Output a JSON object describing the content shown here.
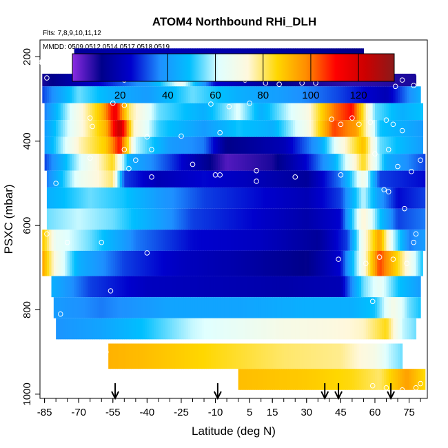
{
  "chart_data": {
    "type": "heatmap",
    "title": "ATOM4 Northbound RHi_DLH",
    "subtitle_flights": "Flts: 7,8,9,10,11,12",
    "subtitle_dates": "MMDD: 0509,0512,0514,0517,0518,0519",
    "xlabel": "Latitude (deg N)",
    "ylabel": "PSXC (mbar)",
    "xlim": [
      -87,
      83
    ],
    "ylim": [
      1010,
      160
    ],
    "x_ticks": [
      -85,
      -70,
      -55,
      -40,
      -25,
      -10,
      5,
      15,
      30,
      45,
      60,
      75
    ],
    "y_ticks": [
      200,
      400,
      600,
      800,
      1000
    ],
    "colorbar": {
      "ticks": [
        20,
        40,
        60,
        80,
        100,
        120
      ],
      "range": [
        0,
        135
      ],
      "colors": [
        "#8b2be2",
        "#00008b",
        "#0000cd",
        "#1e90ff",
        "#00bfff",
        "#e0ffff",
        "#fff8dc",
        "#ffd700",
        "#ff8c00",
        "#ff0000",
        "#cd0000",
        "#8b1a1a"
      ],
      "divisions": [
        40,
        60,
        80,
        100,
        120
      ]
    },
    "arrow_latitudes": [
      -54,
      -9,
      38,
      44,
      67
    ],
    "bands": [
      {
        "p_top": 180,
        "p_bot": 240,
        "x0": -72,
        "x1": 55,
        "stops": [
          [
            -72,
            15
          ],
          [
            -40,
            20
          ],
          [
            0,
            18
          ],
          [
            55,
            12
          ]
        ]
      },
      {
        "p_top": 240,
        "p_bot": 270,
        "x0": -86,
        "x1": 78,
        "stops": [
          [
            -86,
            10
          ],
          [
            -60,
            25
          ],
          [
            -40,
            40
          ],
          [
            -25,
            65
          ],
          [
            -10,
            25
          ],
          [
            20,
            12
          ],
          [
            50,
            8
          ],
          [
            78,
            10
          ]
        ]
      },
      {
        "p_top": 270,
        "p_bot": 310,
        "x0": -86,
        "x1": 80,
        "stops": [
          [
            -86,
            30
          ],
          [
            -70,
            55
          ],
          [
            -55,
            45
          ],
          [
            -40,
            40
          ],
          [
            -20,
            55
          ],
          [
            0,
            45
          ],
          [
            20,
            40
          ],
          [
            45,
            30
          ],
          [
            65,
            20
          ],
          [
            80,
            45
          ]
        ]
      },
      {
        "p_top": 310,
        "p_bot": 350,
        "x0": -85,
        "x1": 81,
        "stops": [
          [
            -85,
            35
          ],
          [
            -70,
            70
          ],
          [
            -60,
            90
          ],
          [
            -54,
            115
          ],
          [
            -48,
            80
          ],
          [
            -35,
            55
          ],
          [
            -15,
            45
          ],
          [
            0,
            62
          ],
          [
            10,
            45
          ],
          [
            30,
            70
          ],
          [
            42,
            100
          ],
          [
            50,
            110
          ],
          [
            60,
            55
          ],
          [
            72,
            45
          ],
          [
            81,
            50
          ]
        ]
      },
      {
        "p_top": 350,
        "p_bot": 390,
        "x0": -85,
        "x1": 81,
        "stops": [
          [
            -85,
            40
          ],
          [
            -70,
            70
          ],
          [
            -58,
            92
          ],
          [
            -52,
            125
          ],
          [
            -46,
            75
          ],
          [
            -35,
            52
          ],
          [
            -15,
            40
          ],
          [
            0,
            50
          ],
          [
            15,
            45
          ],
          [
            30,
            68
          ],
          [
            42,
            105
          ],
          [
            52,
            95
          ],
          [
            62,
            50
          ],
          [
            81,
            40
          ]
        ]
      },
      {
        "p_top": 390,
        "p_bot": 430,
        "x0": -85,
        "x1": 81,
        "stops": [
          [
            -85,
            40
          ],
          [
            -70,
            75
          ],
          [
            -58,
            88
          ],
          [
            -52,
            110
          ],
          [
            -45,
            60
          ],
          [
            -30,
            40
          ],
          [
            -15,
            35
          ],
          [
            -5,
            12
          ],
          [
            20,
            20
          ],
          [
            35,
            40
          ],
          [
            45,
            70
          ],
          [
            55,
            90
          ],
          [
            62,
            55
          ],
          [
            81,
            40
          ]
        ]
      },
      {
        "p_top": 430,
        "p_bot": 470,
        "x0": -85,
        "x1": 82,
        "stops": [
          [
            -85,
            30
          ],
          [
            -70,
            60
          ],
          [
            -55,
            85
          ],
          [
            -48,
            45
          ],
          [
            -30,
            30
          ],
          [
            -5,
            5
          ],
          [
            15,
            10
          ],
          [
            30,
            25
          ],
          [
            42,
            45
          ],
          [
            55,
            85
          ],
          [
            65,
            45
          ],
          [
            82,
            30
          ]
        ]
      },
      {
        "p_top": 470,
        "p_bot": 510,
        "x0": -84,
        "x1": 82,
        "stops": [
          [
            -84,
            35
          ],
          [
            -70,
            65
          ],
          [
            -55,
            80
          ],
          [
            -50,
            30
          ],
          [
            -35,
            20
          ],
          [
            -15,
            25
          ],
          [
            10,
            20
          ],
          [
            30,
            15
          ],
          [
            45,
            35
          ],
          [
            55,
            70
          ],
          [
            62,
            30
          ],
          [
            82,
            25
          ]
        ]
      },
      {
        "p_top": 510,
        "p_bot": 560,
        "x0": -84,
        "x1": 82,
        "stops": [
          [
            -84,
            45
          ],
          [
            -65,
            55
          ],
          [
            -50,
            50
          ],
          [
            -35,
            40
          ],
          [
            -15,
            30
          ],
          [
            10,
            25
          ],
          [
            30,
            20
          ],
          [
            45,
            30
          ],
          [
            55,
            60
          ],
          [
            62,
            40
          ],
          [
            70,
            25
          ],
          [
            82,
            30
          ]
        ]
      },
      {
        "p_top": 560,
        "p_bot": 610,
        "x0": -84,
        "x1": 82,
        "stops": [
          [
            -84,
            55
          ],
          [
            -70,
            60
          ],
          [
            -55,
            55
          ],
          [
            -40,
            45
          ],
          [
            -20,
            30
          ],
          [
            5,
            25
          ],
          [
            30,
            18
          ],
          [
            45,
            25
          ],
          [
            55,
            75
          ],
          [
            62,
            50
          ],
          [
            70,
            30
          ],
          [
            82,
            35
          ]
        ]
      },
      {
        "p_top": 610,
        "p_bot": 660,
        "x0": -86,
        "x1": 82,
        "stops": [
          [
            -86,
            90
          ],
          [
            -80,
            65
          ],
          [
            -65,
            55
          ],
          [
            -45,
            35
          ],
          [
            -20,
            25
          ],
          [
            10,
            22
          ],
          [
            35,
            15
          ],
          [
            48,
            30
          ],
          [
            55,
            70
          ],
          [
            62,
            95
          ],
          [
            68,
            60
          ],
          [
            75,
            35
          ],
          [
            82,
            40
          ]
        ]
      },
      {
        "p_top": 660,
        "p_bot": 720,
        "x0": -86,
        "x1": 81,
        "stops": [
          [
            -86,
            95
          ],
          [
            -80,
            70
          ],
          [
            -70,
            45
          ],
          [
            -50,
            30
          ],
          [
            -25,
            22
          ],
          [
            0,
            18
          ],
          [
            30,
            12
          ],
          [
            45,
            25
          ],
          [
            55,
            70
          ],
          [
            62,
            105
          ],
          [
            70,
            85
          ],
          [
            81,
            50
          ]
        ]
      },
      {
        "p_top": 720,
        "p_bot": 770,
        "x0": -82,
        "x1": 80,
        "stops": [
          [
            -82,
            45
          ],
          [
            -65,
            30
          ],
          [
            -40,
            22
          ],
          [
            -10,
            20
          ],
          [
            20,
            18
          ],
          [
            45,
            20
          ],
          [
            55,
            55
          ],
          [
            62,
            65
          ],
          [
            70,
            50
          ],
          [
            80,
            40
          ]
        ]
      },
      {
        "p_top": 770,
        "p_bot": 820,
        "x0": -81,
        "x1": 80,
        "stops": [
          [
            -81,
            40
          ],
          [
            -60,
            35
          ],
          [
            -30,
            42
          ],
          [
            0,
            42
          ],
          [
            30,
            45
          ],
          [
            50,
            45
          ],
          [
            60,
            50
          ],
          [
            68,
            70
          ],
          [
            75,
            55
          ],
          [
            80,
            50
          ]
        ]
      },
      {
        "p_top": 820,
        "p_bot": 870,
        "x0": -80,
        "x1": 78,
        "stops": [
          [
            -80,
            38
          ],
          [
            -60,
            42
          ],
          [
            -40,
            50
          ],
          [
            -20,
            60
          ],
          [
            0,
            65
          ],
          [
            20,
            70
          ],
          [
            40,
            72
          ],
          [
            55,
            75
          ],
          [
            65,
            85
          ],
          [
            72,
            60
          ],
          [
            78,
            55
          ]
        ]
      },
      {
        "p_top": 880,
        "p_bot": 940,
        "x0": -57,
        "x1": 72,
        "stops": [
          [
            -57,
            92
          ],
          [
            -40,
            90
          ],
          [
            -10,
            85
          ],
          [
            20,
            80
          ],
          [
            45,
            78
          ],
          [
            60,
            70
          ],
          [
            66,
            60
          ],
          [
            72,
            55
          ]
        ]
      },
      {
        "p_top": 940,
        "p_bot": 990,
        "x0": 0,
        "x1": 82,
        "stops": [
          [
            0,
            90
          ],
          [
            30,
            88
          ],
          [
            50,
            85
          ],
          [
            62,
            80
          ],
          [
            68,
            88
          ],
          [
            74,
            95
          ],
          [
            82,
            85
          ]
        ]
      }
    ],
    "points": [
      [
        -86,
        215
      ],
      [
        -84,
        250
      ],
      [
        -72,
        208
      ],
      [
        -50,
        255
      ],
      [
        -43,
        252
      ],
      [
        -38,
        245
      ],
      [
        -28,
        210
      ],
      [
        -15,
        228
      ],
      [
        -55,
        310
      ],
      [
        -50,
        315
      ],
      [
        -65,
        345
      ],
      [
        -12,
        312
      ],
      [
        -4,
        318
      ],
      [
        3,
        255
      ],
      [
        5,
        310
      ],
      [
        12,
        262
      ],
      [
        18,
        265
      ],
      [
        28,
        262
      ],
      [
        34,
        262
      ],
      [
        52,
        210
      ],
      [
        58,
        210
      ],
      [
        65,
        225
      ],
      [
        70,
        215
      ],
      [
        76,
        228
      ],
      [
        79,
        240
      ],
      [
        69,
        270
      ],
      [
        72,
        255
      ],
      [
        77,
        268
      ],
      [
        -64,
        365
      ],
      [
        -40,
        390
      ],
      [
        -25,
        388
      ],
      [
        -8,
        380
      ],
      [
        -50,
        420
      ],
      [
        -38,
        420
      ],
      [
        -65,
        440
      ],
      [
        -45,
        445
      ],
      [
        -20,
        455
      ],
      [
        -8,
        480
      ],
      [
        8,
        470
      ],
      [
        25,
        485
      ],
      [
        41,
        348
      ],
      [
        45,
        360
      ],
      [
        50,
        345
      ],
      [
        53,
        360
      ],
      [
        58,
        355
      ],
      [
        65,
        350
      ],
      [
        68,
        360
      ],
      [
        72,
        375
      ],
      [
        66,
        420
      ],
      [
        60,
        430
      ],
      [
        70,
        460
      ],
      [
        76,
        472
      ],
      [
        80,
        445
      ],
      [
        -80,
        500
      ],
      [
        -48,
        465
      ],
      [
        -38,
        485
      ],
      [
        -10,
        480
      ],
      [
        8,
        495
      ],
      [
        45,
        480
      ],
      [
        64,
        515
      ],
      [
        66,
        520
      ],
      [
        73,
        560
      ],
      [
        -84,
        620
      ],
      [
        -75,
        640
      ],
      [
        -60,
        640
      ],
      [
        -40,
        665
      ],
      [
        44,
        680
      ],
      [
        56,
        690
      ],
      [
        62,
        675
      ],
      [
        68,
        680
      ],
      [
        74,
        690
      ],
      [
        77,
        640
      ],
      [
        78,
        620
      ],
      [
        -56,
        755
      ],
      [
        59,
        780
      ],
      [
        -78,
        810
      ],
      [
        -58,
        900
      ],
      [
        59,
        980
      ],
      [
        65,
        985
      ],
      [
        72,
        990
      ],
      [
        78,
        985
      ],
      [
        80,
        975
      ],
      [
        -86,
        210
      ]
    ]
  }
}
